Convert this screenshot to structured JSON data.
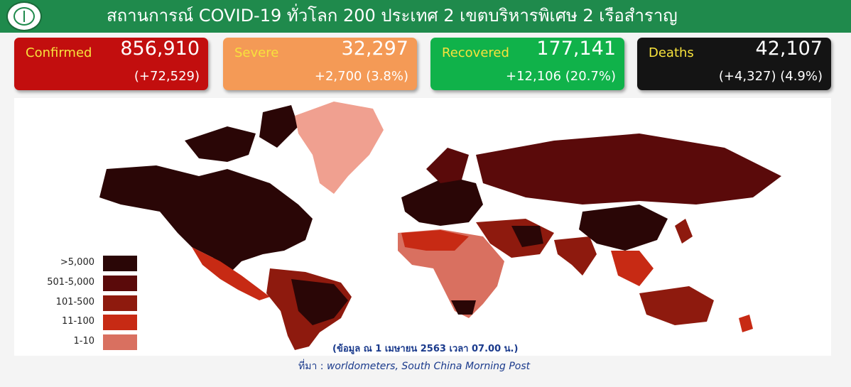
{
  "header": {
    "title": "สถานการณ์ COVID-19 ทั่วโลก 200 ประเทศ 2 เขตบริหารพิเศษ 2 เรือสำราญ",
    "logo_icon": "department-of-disease-control-logo-icon",
    "bg_color": "#1f8a4c"
  },
  "cards": [
    {
      "label": "Confirmed",
      "value": "856,910",
      "sub": "(+72,529)",
      "color": "#c20e0e"
    },
    {
      "label": "Severe",
      "value": "32,297",
      "sub": "+2,700 (3.8%)",
      "color": "#f49a56"
    },
    {
      "label": "Recovered",
      "value": "177,141",
      "sub": "+12,106 (20.7%)",
      "color": "#10b24a"
    },
    {
      "label": "Deaths",
      "value": "42,107",
      "sub": "(+4,327) (4.9%)",
      "color": "#141414"
    }
  ],
  "legend": [
    {
      "label": ">5,000",
      "color": "#2a0606"
    },
    {
      "label": "501-5,000",
      "color": "#5a0a0a"
    },
    {
      "label": "101-500",
      "color": "#8e1a0e"
    },
    {
      "label": "11-100",
      "color": "#c72a14"
    },
    {
      "label": "1-10",
      "color": "#d97060"
    }
  ],
  "map_note": "(ข้อมูล ณ 1 เมษายน 2563 เวลา 07.00 น.)",
  "source": {
    "prefix": "ที่มา :",
    "text": "worldometers,  South China Morning Post"
  }
}
